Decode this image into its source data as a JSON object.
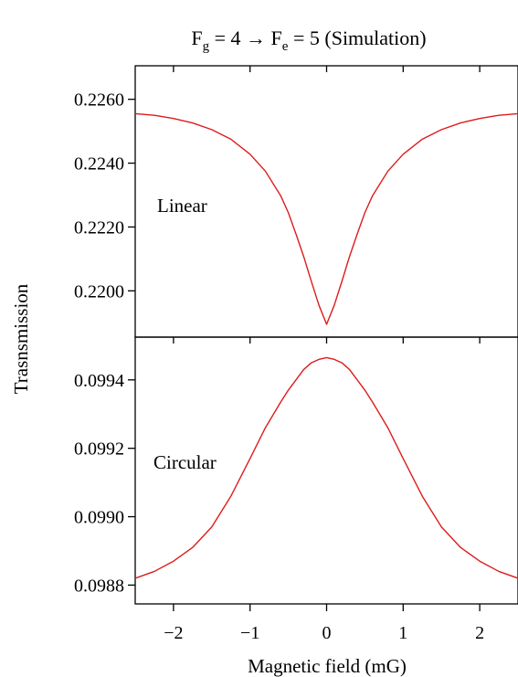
{
  "title": {
    "main_left": "F",
    "sub_g": "g",
    "eq_left": " = 4  →  F",
    "sub_e": "e",
    "eq_right": " = 5 (Simulation)"
  },
  "ylabel": "Trasnsmission",
  "xlabel": "Magnetic field (mG)",
  "colors": {
    "curve": "#dd1c1c",
    "axes": "#000000"
  },
  "chart_data": [
    {
      "type": "line",
      "panel": "top",
      "annotation": "Linear",
      "xlim": [
        -2.5,
        2.5
      ],
      "ylim": [
        0.21855,
        0.22705
      ],
      "xticks": [
        -2,
        -1,
        0,
        1,
        2
      ],
      "yticks": [
        0.22,
        0.222,
        0.224,
        0.226
      ],
      "ytick_labels": [
        "0.2200",
        "0.2220",
        "0.2240",
        "0.2260"
      ],
      "series": [
        {
          "x": [
            -2.5,
            -2.25,
            -2.0,
            -1.75,
            -1.5,
            -1.25,
            -1.0,
            -0.8,
            -0.6,
            -0.5,
            -0.4,
            -0.3,
            -0.2,
            -0.1,
            0.0,
            0.1,
            0.2,
            0.3,
            0.4,
            0.5,
            0.6,
            0.8,
            1.0,
            1.25,
            1.5,
            1.75,
            2.0,
            2.25,
            2.5
          ],
          "y": [
            0.22555,
            0.2255,
            0.2254,
            0.22526,
            0.22505,
            0.22475,
            0.22428,
            0.22375,
            0.22298,
            0.22245,
            0.22178,
            0.22108,
            0.2203,
            0.21955,
            0.21895,
            0.21955,
            0.2203,
            0.22108,
            0.22178,
            0.22245,
            0.22298,
            0.22375,
            0.22428,
            0.22475,
            0.22505,
            0.22526,
            0.2254,
            0.2255,
            0.22555
          ]
        }
      ]
    },
    {
      "type": "line",
      "panel": "bottom",
      "annotation": "Circular",
      "xlim": [
        -2.5,
        2.5
      ],
      "ylim": [
        0.098745,
        0.099525
      ],
      "xticks": [
        -2,
        -1,
        0,
        1,
        2
      ],
      "xtick_labels": [
        "−2",
        "−1",
        "0",
        "1",
        "2"
      ],
      "yticks": [
        0.0988,
        0.099,
        0.0992,
        0.0994
      ],
      "ytick_labels": [
        "0.0988",
        "0.0990",
        "0.0992",
        "0.0994"
      ],
      "series": [
        {
          "x": [
            -2.5,
            -2.25,
            -2.0,
            -1.75,
            -1.5,
            -1.25,
            -1.0,
            -0.8,
            -0.6,
            -0.5,
            -0.4,
            -0.3,
            -0.2,
            -0.1,
            0.0,
            0.1,
            0.2,
            0.3,
            0.4,
            0.5,
            0.6,
            0.8,
            1.0,
            1.25,
            1.5,
            1.75,
            2.0,
            2.25,
            2.5
          ],
          "y": [
            0.09882,
            0.09884,
            0.09887,
            0.09891,
            0.09897,
            0.09906,
            0.09917,
            0.09926,
            0.099335,
            0.09937,
            0.0994,
            0.09943,
            0.09945,
            0.09946,
            0.099465,
            0.09946,
            0.09945,
            0.09943,
            0.0994,
            0.09937,
            0.099335,
            0.09926,
            0.09917,
            0.09906,
            0.09897,
            0.09891,
            0.09887,
            0.09884,
            0.09882
          ]
        }
      ]
    }
  ]
}
